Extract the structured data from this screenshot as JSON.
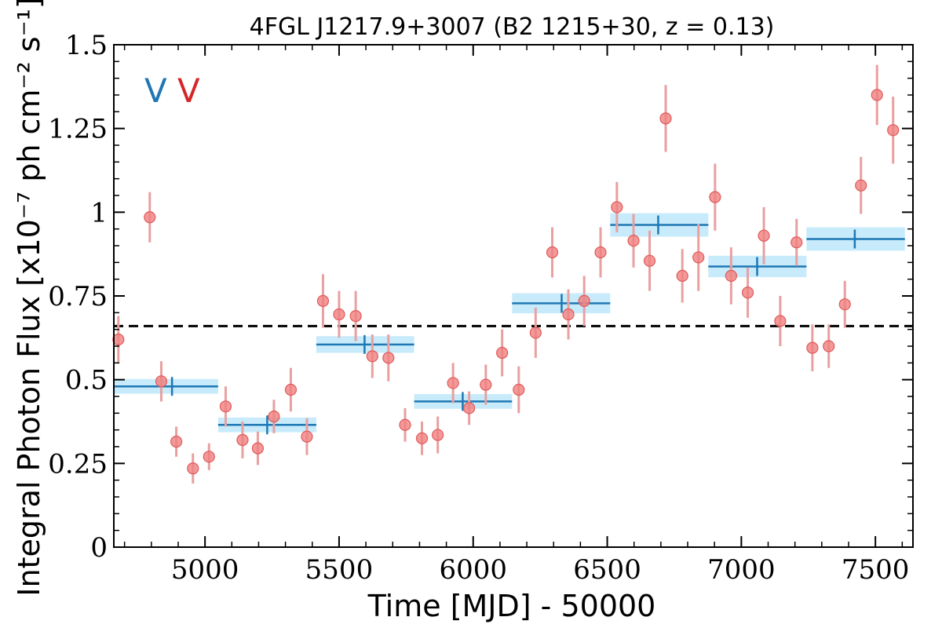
{
  "chart_data": {
    "type": "scatter",
    "title": "4FGL J1217.9+3007 (B2 1215+30, z = 0.13)",
    "xlabel": "Time [MJD] - 50000",
    "ylabel": "Integral Photon Flux [x10⁻⁷ ph cm⁻² s⁻¹]",
    "xlim": [
      4660,
      7640
    ],
    "ylim": [
      0,
      1.5
    ],
    "xticks": [
      5000,
      5500,
      6000,
      6500,
      7000,
      7500
    ],
    "xtick_labels": [
      "5000",
      "5500",
      "6000",
      "6500",
      "7000",
      "7500"
    ],
    "yticks": [
      0,
      0.25,
      0.5,
      0.75,
      1,
      1.25,
      1.5
    ],
    "ytick_labels": [
      "0",
      "0.25",
      "0.5",
      "0.75",
      "1",
      "1.25",
      "1.5"
    ],
    "grid": false,
    "mean_flux": 0.66,
    "markers": [
      {
        "label": "V",
        "color": "#1f77b4"
      },
      {
        "label": "V",
        "color": "#d62728"
      }
    ],
    "colors": {
      "points": "#f08080",
      "points_edge": "#e05a5a",
      "errorbars": "#e8a0a0",
      "bins": "#1f77b4",
      "bin_band": "#c7ebfa",
      "mean_line": "#000000"
    },
    "series": [
      {
        "kind": "points",
        "x": [
          4677,
          4794,
          4837,
          4893,
          4955,
          5015,
          5077,
          5140,
          5197,
          5257,
          5320,
          5380,
          5440,
          5500,
          5562,
          5624,
          5684,
          5746,
          5809,
          5868,
          5925,
          5985,
          6047,
          6108,
          6170,
          6233,
          6295,
          6355,
          6414,
          6475,
          6536,
          6598,
          6658,
          6718,
          6780,
          6840,
          6902,
          6962,
          7024,
          7084,
          7145,
          7206,
          7265,
          7326,
          7386,
          7446,
          7506,
          7566
        ],
        "y": [
          0.62,
          0.985,
          0.495,
          0.315,
          0.235,
          0.27,
          0.42,
          0.32,
          0.295,
          0.39,
          0.47,
          0.33,
          0.735,
          0.695,
          0.69,
          0.57,
          0.565,
          0.365,
          0.325,
          0.335,
          0.49,
          0.415,
          0.485,
          0.58,
          0.47,
          0.64,
          0.88,
          0.695,
          0.735,
          0.88,
          1.015,
          0.915,
          0.855,
          1.28,
          0.81,
          0.865,
          1.045,
          0.81,
          0.76,
          0.93,
          0.675,
          0.91,
          0.595,
          0.6,
          0.725,
          1.08,
          1.35,
          1.245
        ],
        "err": [
          0.07,
          0.075,
          0.06,
          0.045,
          0.045,
          0.04,
          0.06,
          0.055,
          0.05,
          0.05,
          0.065,
          0.055,
          0.08,
          0.07,
          0.075,
          0.065,
          0.07,
          0.05,
          0.05,
          0.055,
          0.06,
          0.05,
          0.06,
          0.07,
          0.07,
          0.075,
          0.075,
          0.075,
          0.075,
          0.075,
          0.075,
          0.08,
          0.09,
          0.1,
          0.08,
          0.1,
          0.1,
          0.085,
          0.075,
          0.085,
          0.075,
          0.07,
          0.07,
          0.065,
          0.07,
          0.085,
          0.09,
          0.1
        ]
      },
      {
        "kind": "bins",
        "x_start": [
          4660,
          5049,
          5415,
          5780,
          6145,
          6511,
          6877,
          7243
        ],
        "x_end": [
          5049,
          5415,
          5780,
          6145,
          6511,
          6877,
          7243,
          7610
        ],
        "x_center": [
          4877,
          5232,
          5595,
          5961,
          6330,
          6690,
          7059,
          7423
        ],
        "y": [
          0.48,
          0.365,
          0.605,
          0.435,
          0.728,
          0.962,
          0.838,
          0.92
        ],
        "err": [
          0.022,
          0.022,
          0.025,
          0.022,
          0.03,
          0.035,
          0.032,
          0.035
        ]
      }
    ]
  }
}
